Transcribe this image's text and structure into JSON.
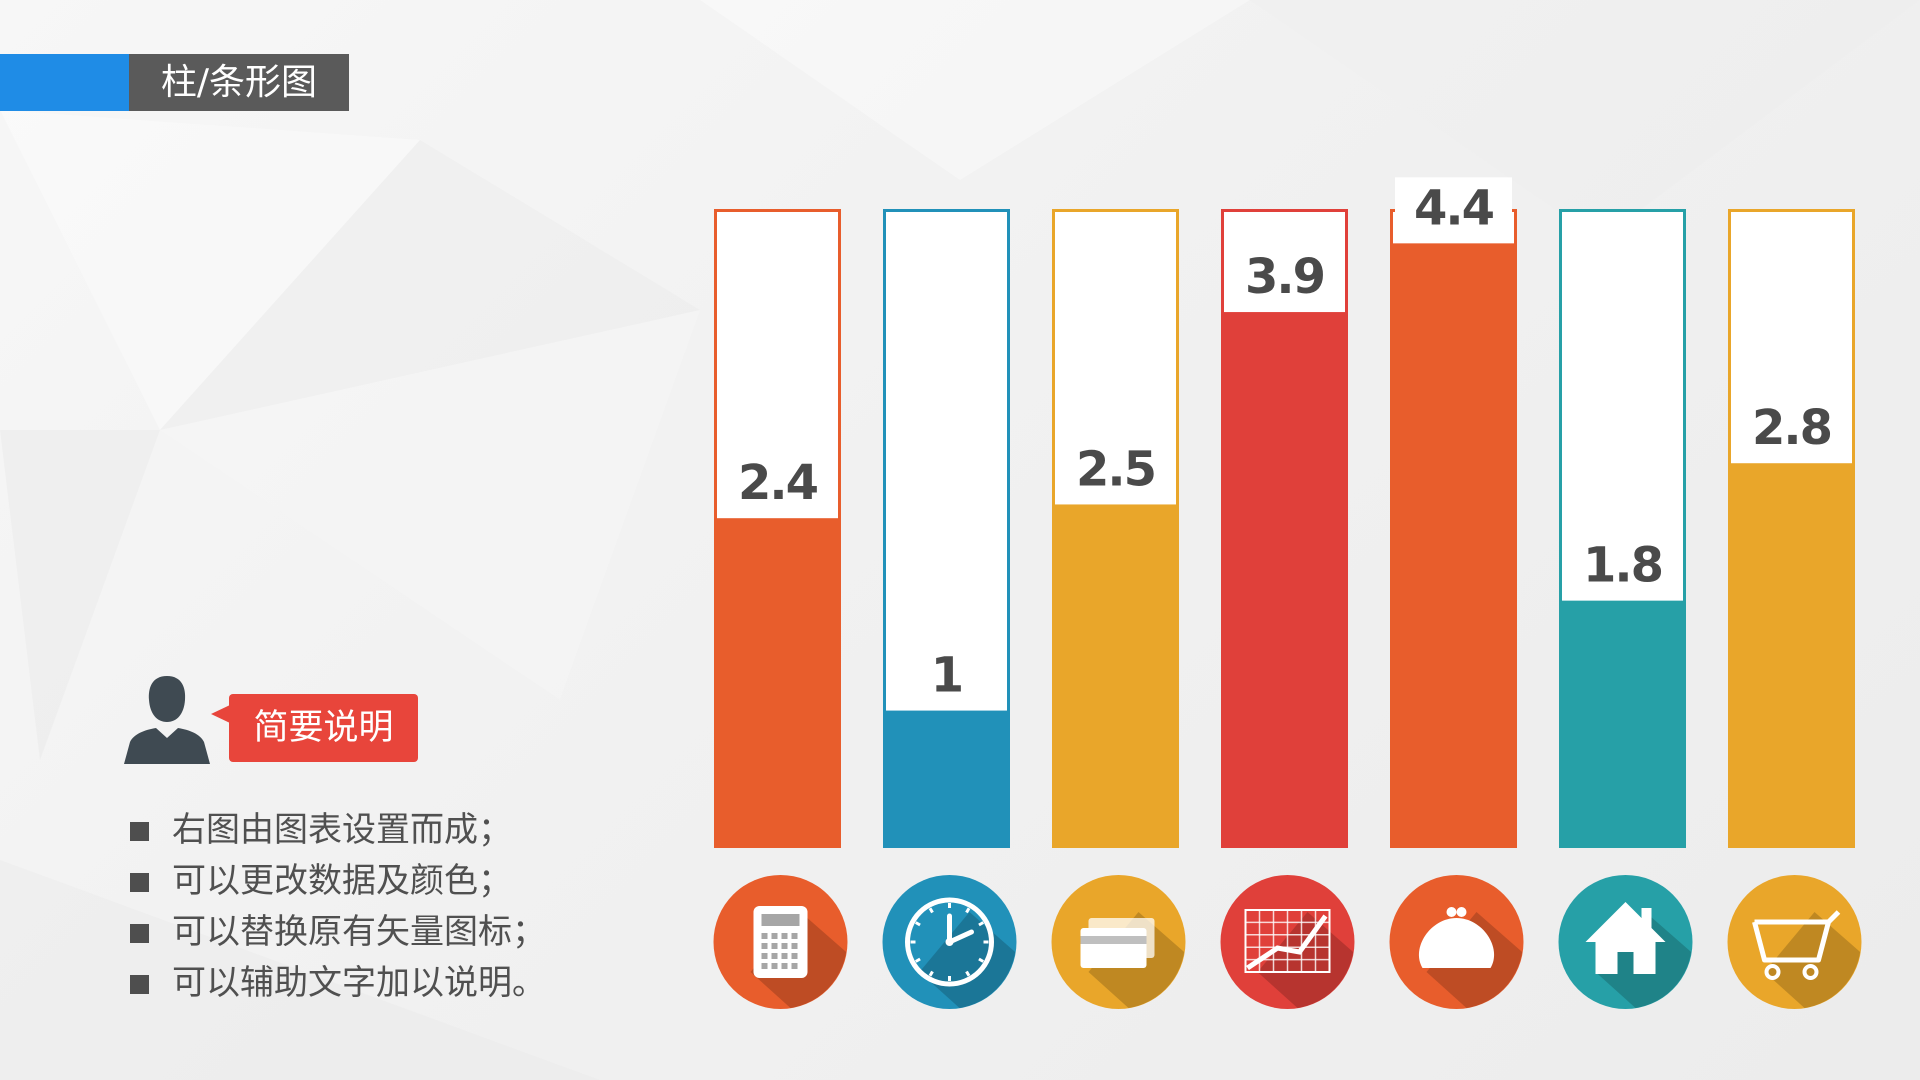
{
  "page": {
    "title": "柱/条形图"
  },
  "note": {
    "callout": "简要说明",
    "bullets": [
      "右图由图表设置而成；",
      "可以更改数据及颜色；",
      "可以替换原有矢量图标；",
      "可以辅助文字加以说明。"
    ]
  },
  "chart_data": {
    "type": "bar",
    "ylim": [
      0,
      4.65
    ],
    "grid": false,
    "legend": "none",
    "values": [
      2.4,
      1,
      2.5,
      3.9,
      4.4,
      1.8,
      2.8
    ],
    "value_labels": [
      "2.4",
      "1",
      "2.5",
      "3.9",
      "4.4",
      "1.8",
      "2.8"
    ],
    "colors": [
      "#e85d2c",
      "#2191b9",
      "#e9a62a",
      "#e0403a",
      "#e85d2c",
      "#26a0a7",
      "#e9a62a"
    ],
    "icons": [
      "calculator-icon",
      "clock-icon",
      "credit-card-icon",
      "line-chart-icon",
      "purse-icon",
      "house-icon",
      "shopping-cart-icon"
    ]
  }
}
